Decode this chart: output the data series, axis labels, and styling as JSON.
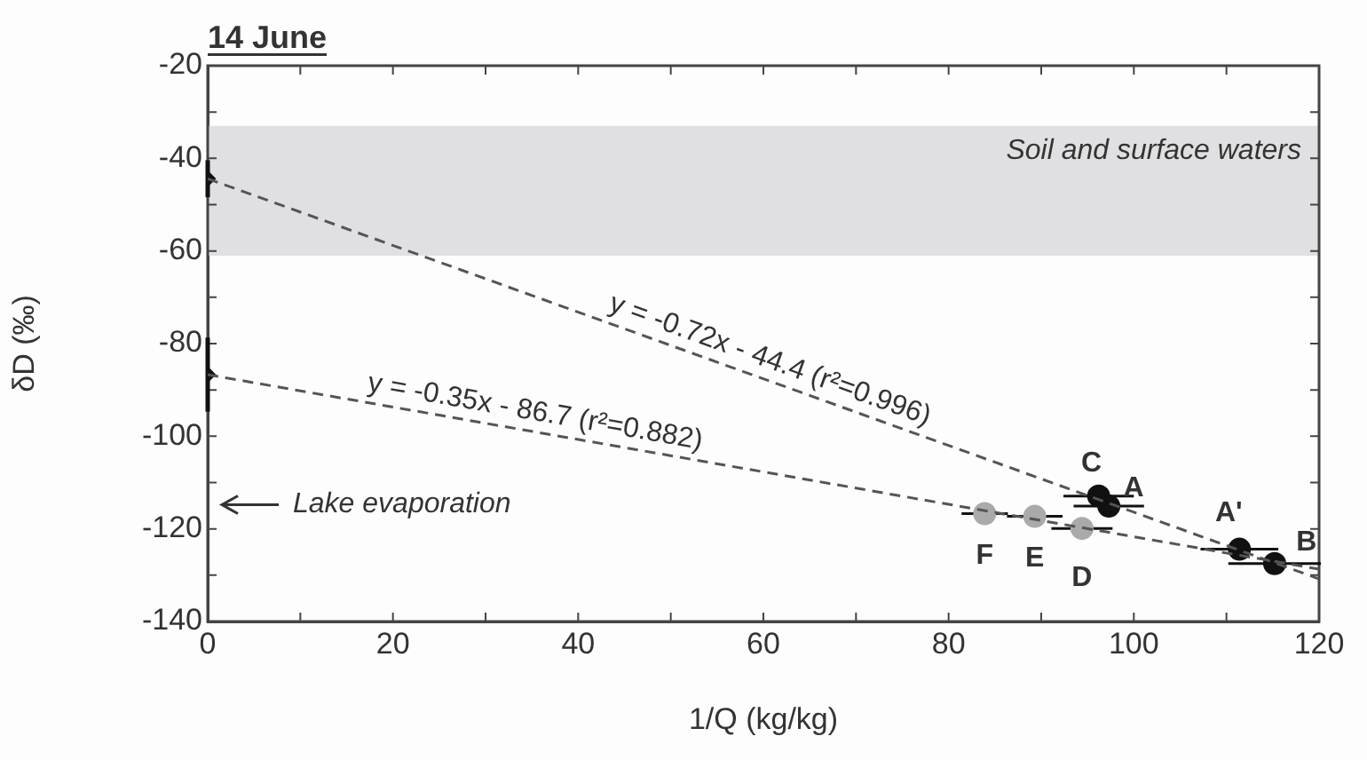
{
  "chart_data": {
    "type": "scatter",
    "title": "14 June",
    "xlabel": "1/Q (kg/kg)",
    "ylabel": "δD (‰)",
    "xlim": [
      0,
      120
    ],
    "xticks": [
      0,
      {
        "value": 10,
        "label": null
      },
      20,
      {
        "value": 30,
        "label": null
      },
      40,
      {
        "value": 50,
        "label": null
      },
      60,
      {
        "value": 70,
        "label": null
      },
      80,
      {
        "value": 90,
        "label": null
      },
      100,
      {
        "value": 110,
        "label": null
      },
      120
    ],
    "ylim": [
      -140,
      -20
    ],
    "yticks": [
      -140,
      {
        "value": -130,
        "label": null
      },
      -120,
      {
        "value": -110,
        "label": null
      },
      -100,
      {
        "value": -90,
        "label": null
      },
      -80,
      {
        "value": -70,
        "label": null
      },
      -60,
      {
        "value": -50,
        "label": null
      },
      -40,
      {
        "value": -30,
        "label": null
      },
      -20
    ],
    "grid": false,
    "legend": false,
    "bands": [
      {
        "axis": "y",
        "from": -61,
        "to": -33,
        "label": "Soil and surface waters",
        "color": "#e0e0e2"
      }
    ],
    "series": [
      {
        "type": "line",
        "color": "#555555",
        "line_style": "dashed",
        "marker": "none",
        "x": [
          0,
          120
        ],
        "values": [
          -44.4,
          -130.8
        ]
      },
      {
        "type": "line",
        "color": "#555555",
        "line_style": "dashed",
        "marker": "none",
        "x": [
          0,
          120
        ],
        "values": [
          -86.7,
          -128.7
        ]
      },
      {
        "type": "scatter",
        "color": "#aaaaaa",
        "marker": "circle",
        "x": [
          83.9,
          89.3,
          94.4
        ],
        "values": [
          -116.7,
          -117.3,
          -119.9
        ],
        "xerrors": [
          2.5,
          3,
          3.3
        ]
      },
      {
        "type": "scatter",
        "color": "#111111",
        "marker": "circle",
        "x": [
          96.2,
          97.3,
          111.4,
          115.2
        ],
        "values": [
          -112.9,
          -115.1,
          -124.4,
          -127.5
        ],
        "xerrors": [
          3.8,
          3.8,
          4.2,
          5
        ]
      },
      {
        "type": "scatter",
        "color": "#111111",
        "marker": "diamond",
        "x": [
          0,
          0
        ],
        "values": [
          -44.4,
          -86.7
        ],
        "errors": [
          4,
          8
        ]
      }
    ],
    "annotations": [
      {
        "text": "y = -0.72x - 44.4 (r²=0.996)",
        "x": 60,
        "y": -87.6
      },
      {
        "text": "y = -0.35x - 86.7 (r²=0.882)",
        "x": 35,
        "y": -99
      },
      "Lake evaporation",
      {
        "text": "F",
        "x": 83.9,
        "y": -116.7
      },
      {
        "text": "E",
        "x": 89.3,
        "y": -117.3
      },
      {
        "text": "D",
        "x": 94.4,
        "y": -119.9
      },
      {
        "text": "C",
        "x": 96.2,
        "y": -112.9
      },
      {
        "text": "A",
        "x": 97.3,
        "y": -115.1
      },
      {
        "text": "A'",
        "x": 111.4,
        "y": -124.4
      },
      {
        "text": "B",
        "x": 115.2,
        "y": -127.5
      }
    ]
  }
}
